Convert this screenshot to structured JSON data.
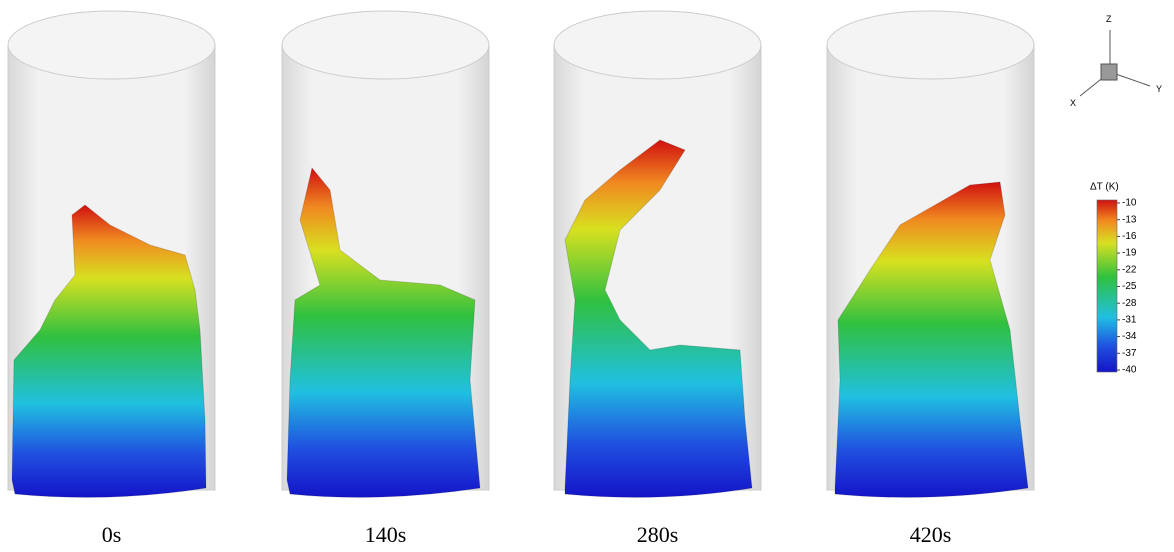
{
  "panels": [
    {
      "label": "0s"
    },
    {
      "label": "140s"
    },
    {
      "label": "280s"
    },
    {
      "label": "420s"
    }
  ],
  "axes": {
    "z": "Z",
    "y": "Y",
    "x": "X"
  },
  "colorbar": {
    "title": "ΔT (K)",
    "ticks": [
      -10,
      -13,
      -16,
      -19,
      -22,
      -25,
      -28,
      -31,
      -34,
      -37,
      -40
    ]
  }
}
